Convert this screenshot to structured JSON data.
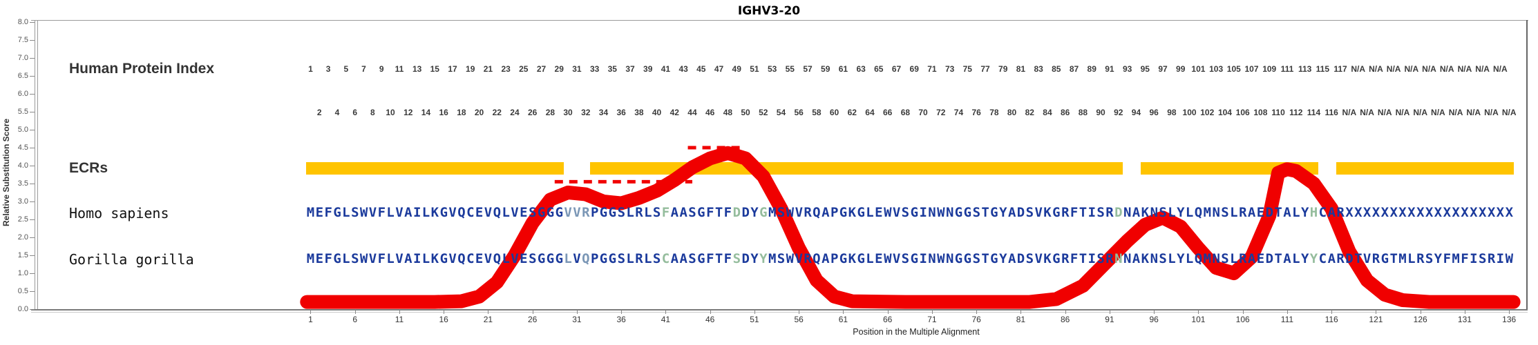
{
  "title": "IGHV3-20",
  "colors": {
    "sequence_navy": "#1b3a9c",
    "mismatch_slate": "#7b97b6",
    "mismatch_green": "#95bd9d",
    "ecr_yellow": "#ffc400",
    "curve_red": "#f00000",
    "label_dark": "#333333",
    "axis_gray": "#888888"
  },
  "y_axis": {
    "label": "Relative Substitution Score",
    "tick_labels": [
      "8.0",
      "7.5",
      "7.0",
      "6.5",
      "6.0",
      "5.5",
      "5.0",
      "4.5",
      "4.0",
      "3.5",
      "3.0",
      "2.5",
      "2.0",
      "1.5",
      "1.0",
      "0.5",
      "0.0"
    ]
  },
  "x_axis": {
    "label": "Position in the Multiple Alignment",
    "tick_positions": [
      1,
      6,
      11,
      16,
      21,
      26,
      31,
      36,
      41,
      46,
      51,
      56,
      61,
      66,
      71,
      76,
      81,
      86,
      91,
      96,
      101,
      106,
      111,
      116,
      121,
      126,
      131,
      136
    ]
  },
  "rows": {
    "human_protein_index": {
      "label": "Human Protein Index",
      "odd_row": [
        "1",
        "3",
        "5",
        "7",
        "9",
        "11",
        "13",
        "15",
        "17",
        "19",
        "21",
        "23",
        "25",
        "27",
        "29",
        "31",
        "33",
        "35",
        "37",
        "39",
        "41",
        "43",
        "45",
        "47",
        "49",
        "51",
        "53",
        "55",
        "57",
        "59",
        "61",
        "63",
        "65",
        "67",
        "69",
        "71",
        "73",
        "75",
        "77",
        "79",
        "81",
        "83",
        "85",
        "87",
        "89",
        "91",
        "93",
        "95",
        "97",
        "99",
        "101",
        "103",
        "105",
        "107",
        "109",
        "111",
        "113",
        "115",
        "117",
        "N/A",
        "N/A",
        "N/A",
        "N/A",
        "N/A",
        "N/A",
        "N/A",
        "N/A",
        "N/A"
      ],
      "even_row": [
        "2",
        "4",
        "6",
        "8",
        "10",
        "12",
        "14",
        "16",
        "18",
        "20",
        "22",
        "24",
        "26",
        "28",
        "30",
        "32",
        "34",
        "36",
        "38",
        "40",
        "42",
        "44",
        "46",
        "48",
        "50",
        "52",
        "54",
        "56",
        "58",
        "60",
        "62",
        "64",
        "66",
        "68",
        "70",
        "72",
        "74",
        "76",
        "78",
        "80",
        "82",
        "84",
        "86",
        "88",
        "90",
        "92",
        "94",
        "96",
        "98",
        "100",
        "102",
        "104",
        "106",
        "108",
        "110",
        "112",
        "114",
        "116",
        "N/A",
        "N/A",
        "N/A",
        "N/A",
        "N/A",
        "N/A",
        "N/A",
        "N/A",
        "N/A",
        "N/A"
      ]
    },
    "ecrs": {
      "label": "ECRs",
      "regions": [
        [
          1,
          29
        ],
        [
          33,
          92
        ],
        [
          95,
          114
        ],
        [
          117,
          136
        ]
      ]
    },
    "homo_sapiens": {
      "label": "Homo sapiens",
      "sequence": "MEFGLSWVFLVAILKGVQCEVQLVESGGGVVRPGGSLRLSFAASGFTFDDYGMSWVRQAPGKGLEWVSGINWNGGSTGYADSVKGRFTISRDNAKNSLYLQMNSLRAEDTALYHCARXXXXXXXXXXXXXXXXXXX",
      "colored_positions": {
        "30": "slate",
        "31": "slate",
        "32": "slate",
        "41": "green",
        "49": "green",
        "52": "green",
        "92": "green",
        "114": "green"
      }
    },
    "gorilla_gorilla": {
      "label": "Gorilla gorilla",
      "sequence": "MEFGLSWVFLVAILKGVQCEVQLVESGGGLVQPGGSLRLSCAASGFTFSDYYMSWVRQAPGKGLEWVSGINWNGGSTGYADSVKGRFTISRNNAKNSLYLQMNSLRAEDTALYYCARDTVRGTMLRSYFMFISRIW",
      "colored_positions": {
        "30": "slate",
        "32": "slate",
        "41": "green",
        "49": "green",
        "52": "green",
        "92": "green",
        "114": "green"
      }
    }
  },
  "chart_data": {
    "type": "line",
    "title": "IGHV3-20",
    "xlabel": "Position in the Multiple Alignment",
    "ylabel": "Relative Substitution Score",
    "xlim": [
      1,
      136
    ],
    "ylim": [
      0,
      8
    ],
    "y_tick_step": 0.5,
    "x_tick_step": 5,
    "grid": false,
    "legend": "none",
    "series": [
      {
        "name": "relative-substitution-score",
        "color": "#f00000",
        "points": [
          [
            0.6,
            0.2
          ],
          [
            5,
            0.2
          ],
          [
            10,
            0.2
          ],
          [
            15,
            0.2
          ],
          [
            18,
            0.22
          ],
          [
            20,
            0.35
          ],
          [
            22,
            0.75
          ],
          [
            24,
            1.5
          ],
          [
            26,
            2.4
          ],
          [
            28,
            3.05
          ],
          [
            30,
            3.25
          ],
          [
            32,
            3.2
          ],
          [
            34,
            3.0
          ],
          [
            36,
            2.95
          ],
          [
            38,
            3.1
          ],
          [
            40,
            3.3
          ],
          [
            42,
            3.6
          ],
          [
            44,
            3.95
          ],
          [
            46,
            4.2
          ],
          [
            48,
            4.35
          ],
          [
            50,
            4.2
          ],
          [
            52,
            3.7
          ],
          [
            54,
            2.8
          ],
          [
            56,
            1.7
          ],
          [
            58,
            0.8
          ],
          [
            60,
            0.35
          ],
          [
            62,
            0.22
          ],
          [
            68,
            0.2
          ],
          [
            75,
            0.2
          ],
          [
            82,
            0.2
          ],
          [
            85,
            0.28
          ],
          [
            88,
            0.65
          ],
          [
            91,
            1.4
          ],
          [
            93,
            1.9
          ],
          [
            95,
            2.35
          ],
          [
            97,
            2.55
          ],
          [
            99,
            2.3
          ],
          [
            101,
            1.7
          ],
          [
            103,
            1.15
          ],
          [
            105,
            1.0
          ],
          [
            107,
            1.45
          ],
          [
            109,
            2.6
          ],
          [
            110,
            3.8
          ],
          [
            111,
            3.9
          ],
          [
            112,
            3.85
          ],
          [
            114,
            3.5
          ],
          [
            116,
            2.8
          ],
          [
            118,
            1.6
          ],
          [
            120,
            0.8
          ],
          [
            122,
            0.4
          ],
          [
            124,
            0.25
          ],
          [
            127,
            0.2
          ],
          [
            131,
            0.2
          ],
          [
            136.5,
            0.2
          ]
        ]
      }
    ],
    "dashed_segments": [
      {
        "x1": 28.5,
        "x2": 44,
        "y": 3.55
      },
      {
        "x1": 43.5,
        "x2": 50,
        "y": 4.5
      }
    ],
    "ecr_regions": [
      [
        1,
        29
      ],
      [
        33,
        92
      ],
      [
        95,
        114
      ],
      [
        117,
        136
      ]
    ]
  }
}
